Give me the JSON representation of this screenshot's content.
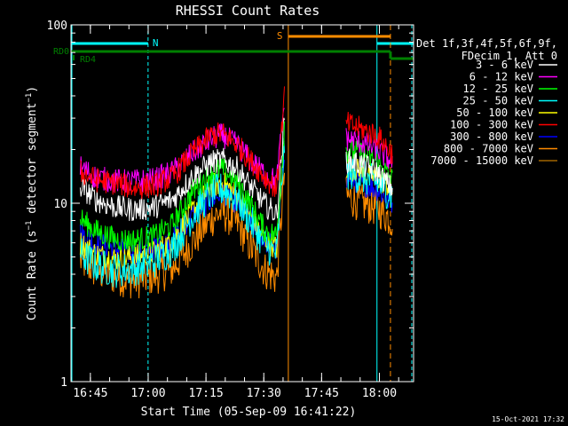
{
  "chart_data": {
    "type": "line",
    "title": "RHESSI Count Rates",
    "xlabel": "Start Time (05-Sep-09 16:41:22)",
    "ylabel": "Count Rate (s⁻¹ detector segment⁻¹)",
    "ylabel_parts": [
      "Count Rate (s",
      "−1",
      " detector segment",
      "−1",
      ")"
    ],
    "yscale": "log",
    "ylim": [
      1,
      100
    ],
    "xlim": [
      -1.4,
      87.5
    ],
    "x_unit": "minutes after 16:41:22",
    "x_ticks": [
      {
        "value": 3.63,
        "label": "16:45"
      },
      {
        "value": 18.63,
        "label": "17:00"
      },
      {
        "value": 33.63,
        "label": "17:15"
      },
      {
        "value": 48.63,
        "label": "17:30"
      },
      {
        "value": 63.63,
        "label": "17:45"
      },
      {
        "value": 78.63,
        "label": "18:00"
      },
      {
        "value": 93.63,
        "label": "18:15"
      }
    ],
    "y_ticks": [
      {
        "value": 1,
        "label": "1"
      },
      {
        "value": 10,
        "label": "10"
      },
      {
        "value": 100,
        "label": "100"
      }
    ],
    "legend": {
      "placement": "right",
      "header": [
        "Det 1f,3f,4f,5f,6f,9f,",
        "FDecim 1, Att 0"
      ]
    },
    "series": [
      {
        "name": "3 - 6 keV",
        "color": "#ffffff",
        "x": [
          1,
          5,
          10,
          15,
          20,
          25,
          30,
          35,
          38,
          42,
          45,
          49,
          52,
          54,
          70,
          74,
          78,
          82
        ],
        "y": [
          12.5,
          10.5,
          9.5,
          9.2,
          9.5,
          10.5,
          14,
          17,
          17.5,
          15.5,
          12.5,
          9.8,
          8.6,
          30,
          17.5,
          16.5,
          15,
          12
        ]
      },
      {
        "name": "6 - 12 keV",
        "color": "#ff00ff",
        "x": [
          1,
          5,
          10,
          15,
          20,
          25,
          30,
          35,
          38,
          42,
          45,
          49,
          52,
          54,
          70,
          74,
          78,
          82
        ],
        "y": [
          16,
          14,
          13.3,
          13.3,
          13.5,
          15,
          19,
          23,
          24,
          21,
          17.5,
          14.5,
          13.2,
          38,
          23,
          22,
          20,
          17
        ]
      },
      {
        "name": "12 - 25 keV",
        "color": "#00ff00",
        "x": [
          1,
          5,
          10,
          15,
          20,
          25,
          30,
          35,
          38,
          42,
          45,
          49,
          52,
          54,
          70,
          74,
          78,
          82
        ],
        "y": [
          8.2,
          7,
          6.3,
          6.2,
          6.5,
          7.6,
          11.5,
          15,
          15.5,
          13,
          10,
          7,
          6.6,
          28,
          20,
          19,
          17,
          13.5
        ]
      },
      {
        "name": "25 - 50 keV",
        "color": "#00ffff",
        "x": [
          1,
          5,
          10,
          15,
          20,
          25,
          30,
          35,
          38,
          42,
          45,
          49,
          52,
          54,
          70,
          74,
          78,
          82
        ],
        "y": [
          5.2,
          4.5,
          4.2,
          4.3,
          4.7,
          5.6,
          8.5,
          11.5,
          12,
          10.5,
          8,
          5.8,
          5.2,
          22,
          15,
          14,
          13,
          11
        ]
      },
      {
        "name": "50 - 100 keV",
        "color": "#ffff00",
        "x": [
          1,
          5,
          10,
          15,
          20,
          25,
          30,
          35,
          38,
          42,
          45,
          49,
          52,
          54,
          70,
          74,
          78,
          82
        ],
        "y": [
          6,
          5.2,
          4.9,
          5,
          5.3,
          6.2,
          9,
          12.5,
          13,
          11,
          8.6,
          6.2,
          5.6,
          24,
          16,
          15,
          14,
          12
        ]
      },
      {
        "name": "100 - 300 keV",
        "color": "#ff0000",
        "x": [
          1,
          5,
          10,
          15,
          20,
          25,
          30,
          35,
          38,
          42,
          45,
          49,
          52,
          54,
          70,
          74,
          78,
          82
        ],
        "y": [
          15,
          13.5,
          13,
          12.2,
          12.5,
          14,
          19,
          24,
          24.5,
          21,
          17.5,
          14,
          12,
          40,
          28,
          26,
          24,
          19
        ]
      },
      {
        "name": "300 - 800 keV",
        "color": "#0000ff",
        "x": [
          1,
          5,
          10,
          15,
          20,
          25,
          30,
          35,
          38,
          42,
          45,
          49,
          52,
          54,
          70,
          74,
          78,
          82
        ],
        "y": [
          6.8,
          6,
          5.6,
          5.2,
          5.6,
          6.2,
          8.5,
          10.5,
          11.5,
          10,
          8,
          6.2,
          5.5,
          20,
          14,
          13,
          12,
          10
        ]
      },
      {
        "name": "800 - 7000 keV",
        "color": "#ff8c00",
        "x": [
          1,
          5,
          10,
          15,
          20,
          25,
          30,
          35,
          38,
          42,
          45,
          49,
          52,
          54,
          70,
          74,
          78,
          82
        ],
        "y": [
          4.8,
          4.2,
          3.9,
          3.7,
          3.9,
          4.3,
          6,
          8.2,
          9,
          7.6,
          5.8,
          4.2,
          3.8,
          15,
          11,
          10,
          9.5,
          8
        ]
      },
      {
        "name": "7000 - 15000 keV",
        "color": "#a06400",
        "x": [],
        "y": []
      }
    ],
    "annotations": {
      "colors": {
        "attenuator": "#00ff00",
        "night": "#00ffff",
        "saa": "#ff8c00",
        "decimation": "#008000"
      },
      "bar_labels": [
        "N",
        "S",
        "RD0",
        "RD4"
      ],
      "night_intervals": [
        [
          -1.4,
          18.6
        ],
        [
          78,
          87.5
        ]
      ],
      "saa_interval": [
        55.0,
        81.5
      ],
      "decimation_breakpoint": 81.5,
      "decimation_levels": [
        "RD0",
        "RD4"
      ]
    },
    "grid": false
  },
  "footer": {
    "date": "15-Oct-2021 17:32"
  }
}
